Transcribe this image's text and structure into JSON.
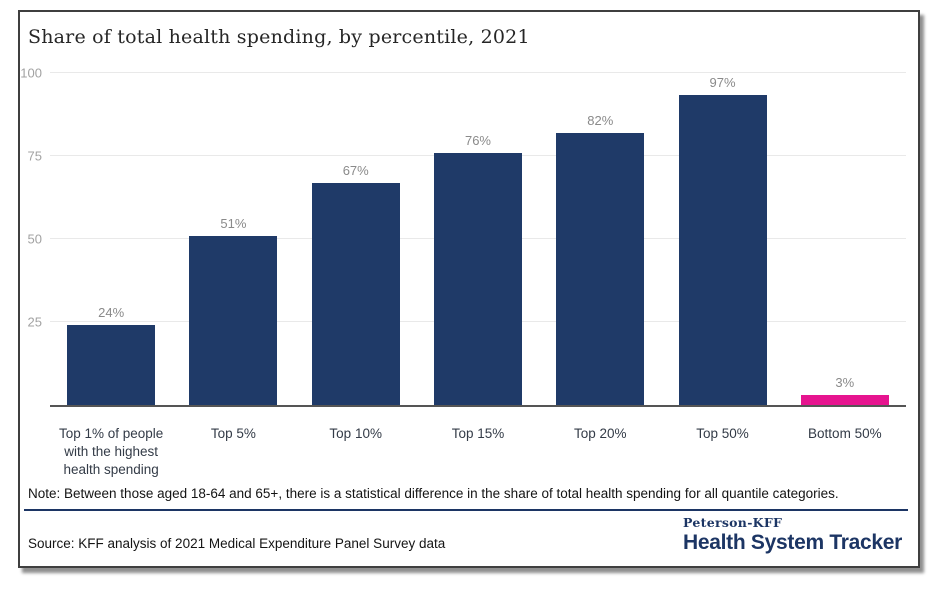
{
  "chart_data": {
    "type": "bar",
    "title": "Share of total health spending, by percentile, 2021",
    "xlabel": "",
    "ylabel": "",
    "categories": [
      "Top 1% of people with the highest health spending",
      "Top 5%",
      "Top 10%",
      "Top 15%",
      "Top 20%",
      "Top 50%",
      "Bottom 50%"
    ],
    "values": [
      24,
      51,
      67,
      76,
      82,
      97,
      3
    ],
    "value_labels": [
      "24%",
      "51%",
      "67%",
      "76%",
      "82%",
      "97%",
      "3%"
    ],
    "yticks": [
      100,
      75,
      50,
      25
    ],
    "ylim": [
      0,
      100
    ],
    "grid": "horizontal-light",
    "legend": "none",
    "bar_color": "#1F3A68",
    "highlight_color": "#E6148F",
    "highlight_index": 6
  },
  "note": "Note: Between those aged 18-64 and 65+, there is a statistical difference in the share of total health spending for all quantile categories.",
  "source": "Source: KFF analysis of 2021 Medical Expenditure Panel Survey data",
  "logo": {
    "top": "Peterson-KFF",
    "bottom": "Health System Tracker"
  }
}
